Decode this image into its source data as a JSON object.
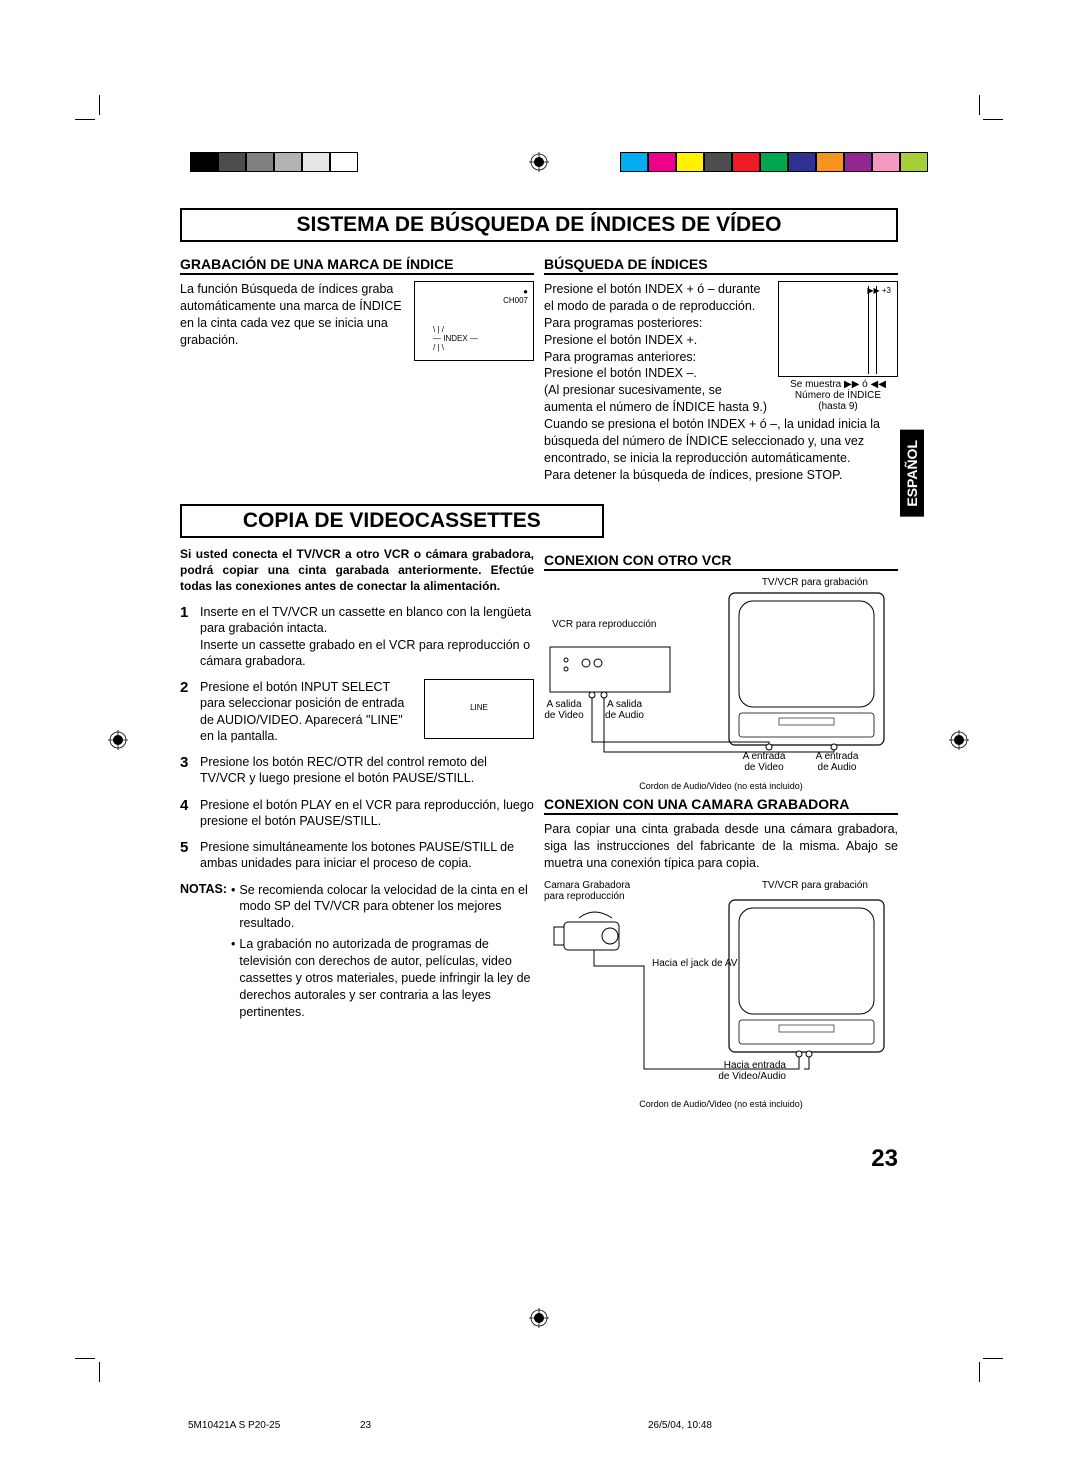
{
  "colorbars_left": [
    "#000000",
    "#4d4d4d",
    "#808080",
    "#b3b3b3",
    "#e6e6e6",
    "#ffffff"
  ],
  "colorbars_right": [
    "#00aeef",
    "#ec008c",
    "#fff200",
    "#4d4d4d",
    "#ed1c24",
    "#00a651",
    "#2e3192",
    "#f7941d",
    "#92278f",
    "#f49ac1",
    "#a6ce39"
  ],
  "lang_tab": "ESPAÑOL",
  "sec1": {
    "title": "SISTEMA DE BÚSQUEDA DE ÍNDICES DE VÍDEO",
    "left": {
      "header": "GRABACIÓN DE UNA MARCA DE ÍNDICE",
      "text": "La función Búsqueda de índices graba automáticamente una marca de ÍNDICE en la cinta cada vez que se inicia una grabación.",
      "diagram": {
        "ch": "CH007",
        "index": "INDEX"
      }
    },
    "right": {
      "header": "BÚSQUEDA DE ÍNDICES",
      "p1": "Presione el botón INDEX + ó – durante el modo de parada o de reproducción.",
      "p2": "Para programas posteriores:",
      "p3": "Presione el botón INDEX +.",
      "p4": "Para programas anteriores:",
      "p5": "Presione el botón INDEX –.",
      "p6": "(Al presionar sucesivamente, se aumenta el número de ÍNDICE hasta 9.)",
      "p7": "Cuando se presiona el botón INDEX + ó –, la unidad inicia la búsqueda del número de ÍNDICE seleccionado y, una vez encontrado, se inicia la reproducción automáticamente.",
      "p8": "Para detener la búsqueda de índices, presione STOP.",
      "diagram": {
        "mark": "+3",
        "caption1": "Se muestra",
        "caption2": "ó",
        "caption3": "Número de ÍNDICE",
        "caption4": "(hasta 9)"
      }
    }
  },
  "sec2": {
    "title": "COPIA DE VIDEOCASSETTES",
    "intro": "Si usted conecta el TV/VCR a otro VCR o cámara grabadora, podrá copiar una cinta garabada anteriormente. Efectúe todas las conexiones antes de conectar la alimentación.",
    "steps": [
      "Inserte en el TV/VCR un cassette en blanco con la lengüeta para grabación intacta.\nInserte un cassette grabado en el VCR para reproducción o cámara grabadora.",
      "Presione el botón INPUT SELECT para seleccionar posición de entrada de AUDIO/VIDEO. Aparecerá \"LINE\" en la pantalla.",
      "Presione los botón REC/OTR del control remoto del TV/VCR y luego presione el botón PAUSE/STILL.",
      "Presione el botón PLAY en el VCR para reproducción, luego presione el botón PAUSE/STILL.",
      "Presione simultáneamente los botones PAUSE/STILL de ambas unidades para iniciar el proceso de copia."
    ],
    "step2_diagram": "LINE",
    "notes_label": "NOTAS:",
    "notes": [
      "Se recomienda colocar la velocidad de la cinta en el modo SP del TV/VCR para obtener los mejores resultado.",
      "La grabación no autorizada de programas de televisión con derechos de autor, películas, video cassettes y otros materiales, puede infringir la ley de derechos autorales y ser contraria a las leyes pertinentes."
    ],
    "right": {
      "h1": "CONEXION CON OTRO VCR",
      "d1": {
        "tvvcr": "TV/VCR para grabación",
        "vcr": "VCR para reproducción",
        "vout": "A salida de Video",
        "aout": "A salida de Audio",
        "vin": "A entrada de Video",
        "ain": "A entrada de Audio",
        "cable": "Cordon de Audio/Video (no está incluido)"
      },
      "h2": "CONEXION CON UNA CAMARA GRABADORA",
      "p": "Para copiar una cinta grabada desde una cámara grabadora, siga las instrucciones del fabricante de la misma. Abajo se muetra una conexión típica para copia.",
      "d2": {
        "tvvcr": "TV/VCR para grabación",
        "cam": "Camara Grabadora para reproducción",
        "jack": "Hacia el jack de AV",
        "in": "Hacia entrada de Video/Audio",
        "cable": "Cordon de Audio/Video (no está incluido)"
      }
    }
  },
  "page_num": "23",
  "footer": {
    "left": "5M10421A S P20-25",
    "mid": "23",
    "right": "26/5/04, 10:48"
  }
}
